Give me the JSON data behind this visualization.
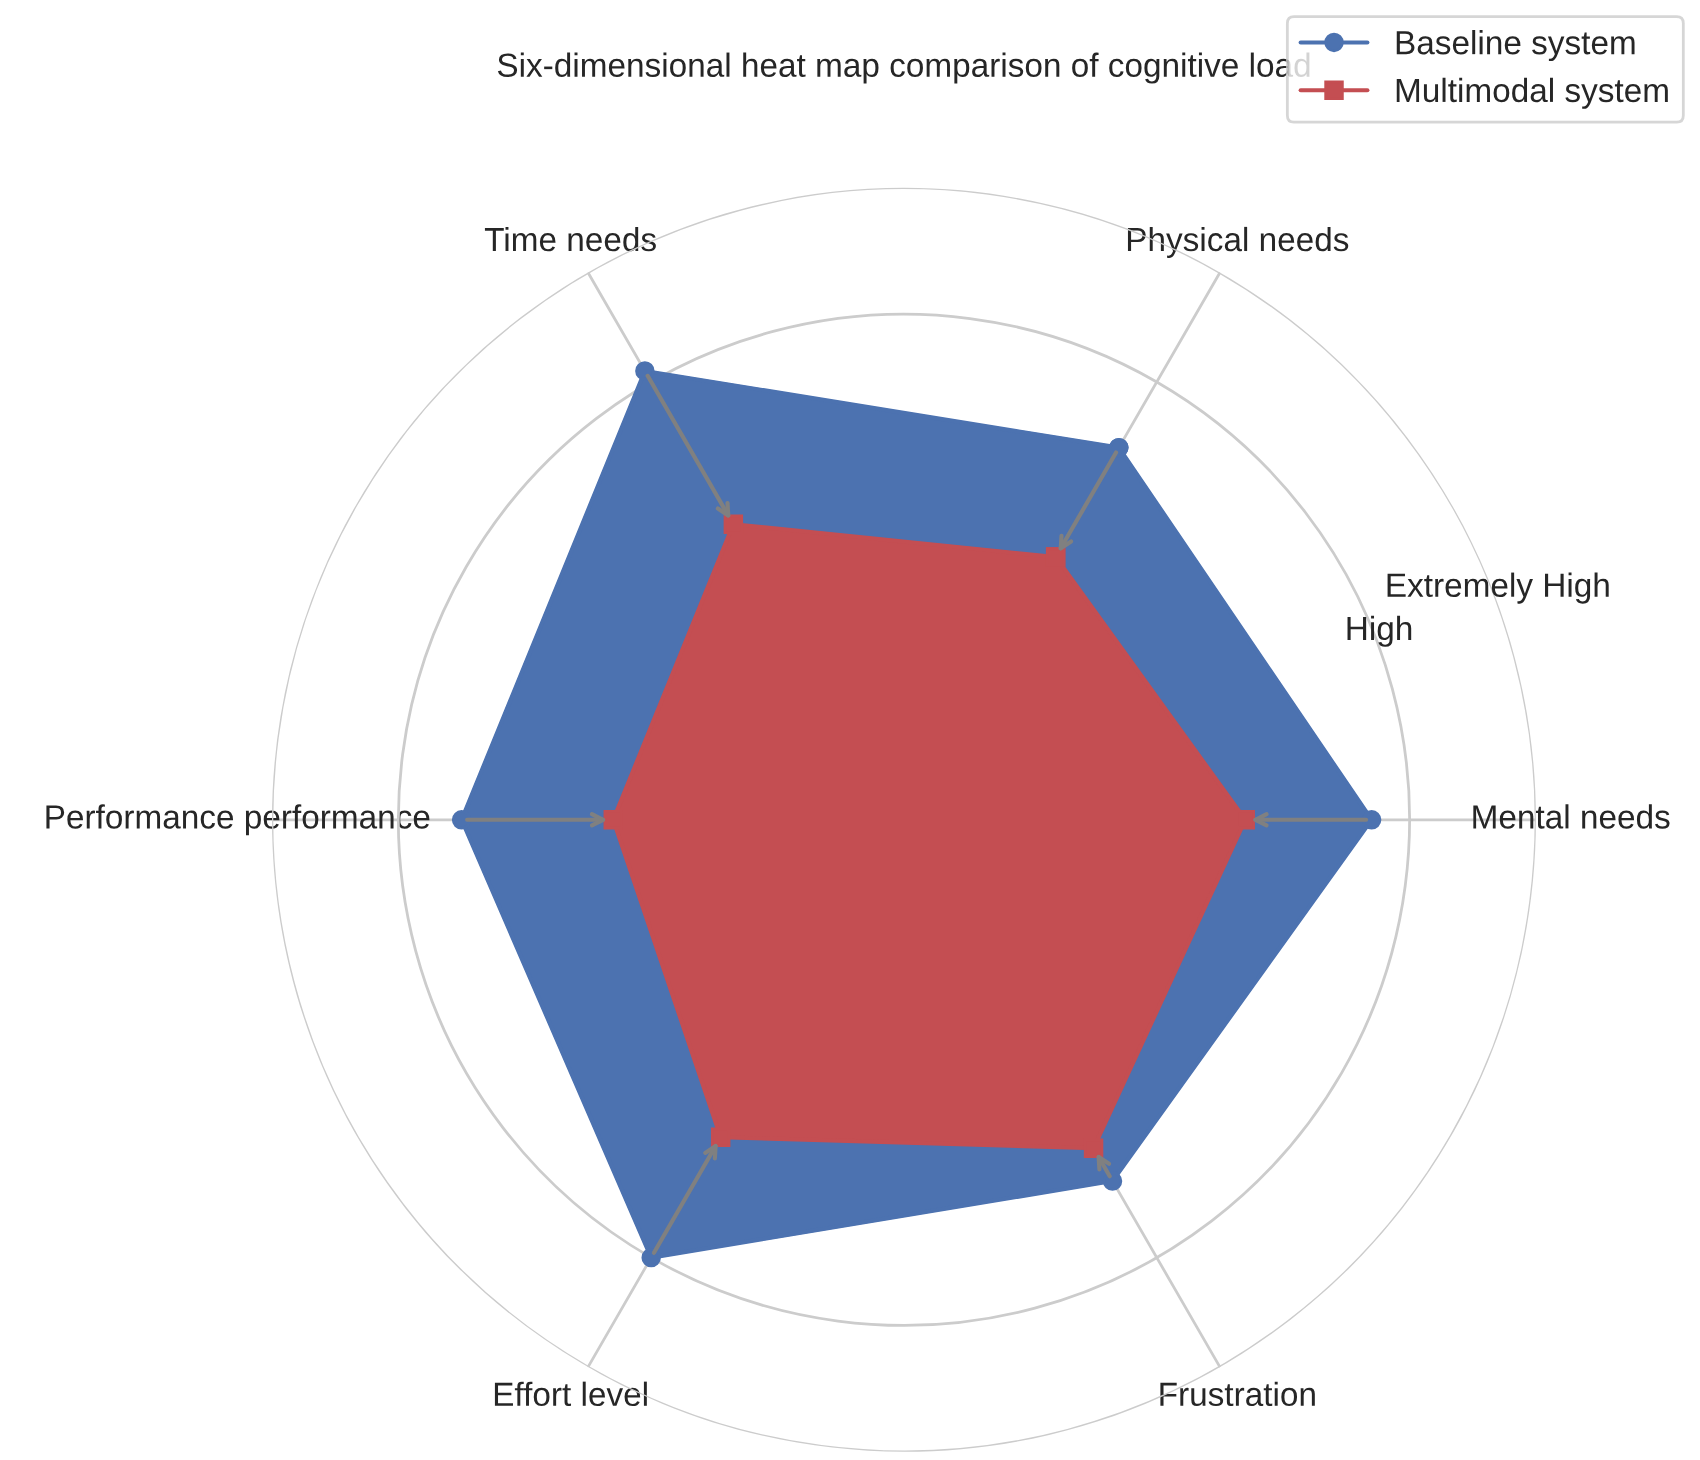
{
  "chart_data": {
    "type": "radar",
    "title": "Six-dimensional heat map comparison of cognitive load",
    "categories": [
      "Physical needs",
      "Mental needs",
      "Frustration",
      "Effort level",
      "Performance performance",
      "Time needs"
    ],
    "series": [
      {
        "name": "Baseline system",
        "color": "#4c72b0",
        "marker": "circle",
        "values": [
          3.4,
          3.7,
          3.3,
          4.0,
          3.5,
          4.1
        ]
      },
      {
        "name": "Multimodal system",
        "color": "#c44e52",
        "marker": "square",
        "values": [
          2.4,
          2.7,
          3.0,
          2.9,
          2.3,
          2.7
        ]
      }
    ],
    "ylim": [
      0,
      5
    ],
    "yticks": [
      {
        "value": 4,
        "label": "High"
      },
      {
        "value": 5,
        "label": "Extremely High"
      }
    ],
    "grid": true,
    "legend": "top right"
  }
}
